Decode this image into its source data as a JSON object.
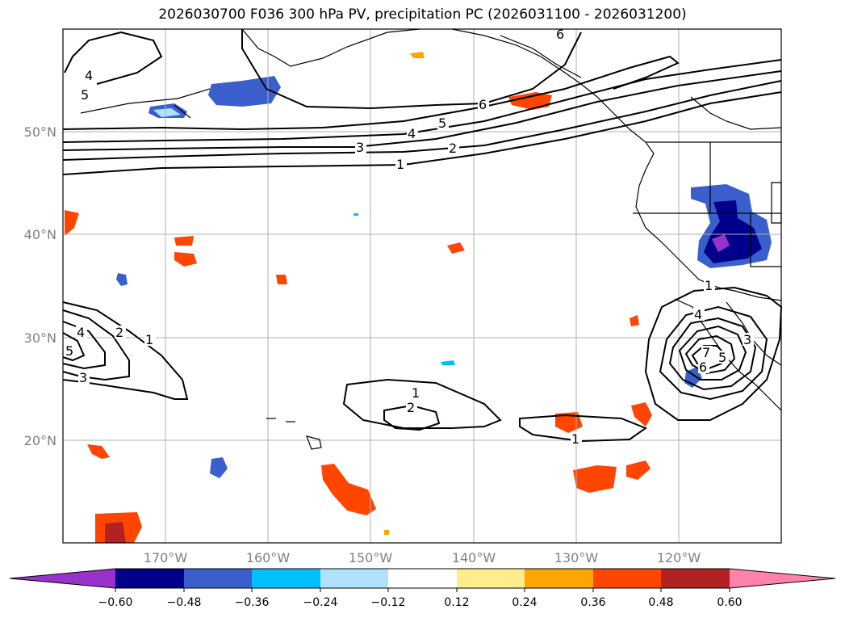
{
  "title": "2026030700 F036 300 hPa PV, precipitation PC (2026031100 - 2026031200)",
  "lat_labels": [
    "50°N",
    "40°N",
    "30°N",
    "20°N"
  ],
  "lon_labels": [
    "170°W",
    "160°W",
    "150°W",
    "140°W",
    "130°W",
    "120°W"
  ],
  "pv_contour_labels": [
    "6",
    "4",
    "5",
    "6",
    "5",
    "4",
    "3",
    "2",
    "1",
    "4",
    "2",
    "1",
    "5",
    "3",
    "1",
    "2",
    "1",
    "1",
    "4",
    "3",
    "5",
    "6",
    "7"
  ],
  "colorbar": {
    "tick_labels": [
      "−0.60",
      "−0.48",
      "−0.36",
      "−0.24",
      "−0.12",
      "0.12",
      "0.24",
      "0.36",
      "0.48",
      "0.60"
    ],
    "colors": [
      "#9932cc",
      "#00008b",
      "#3a5fcd",
      "#00bfff",
      "#b0e2ff",
      "#ffffff",
      "#ffec8b",
      "#ffa500",
      "#ff4500",
      "#b22222",
      "#ff82ab"
    ]
  }
}
